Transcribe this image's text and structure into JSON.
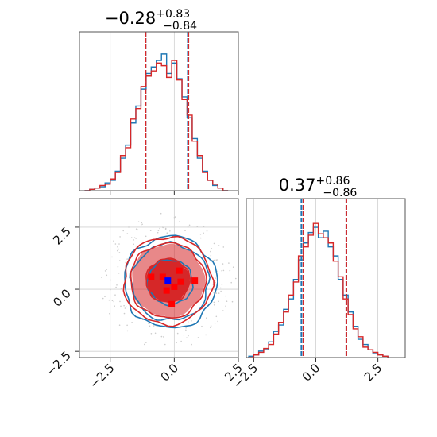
{
  "colors": {
    "blue": "#1f77b4",
    "red": "#d62728",
    "grid": "#d0d0d0",
    "marker": "#0000ff"
  },
  "chart_data": [
    {
      "type": "histogram",
      "panel": "top-left",
      "title": {
        "main": "−0.28",
        "sup": "+0.83",
        "sub": "−0.84"
      },
      "xlim": [
        -3.7,
        2.5
      ],
      "ylim": [
        0,
        1.22
      ],
      "grid": true,
      "xticks": [
        -2.5,
        0.0,
        2.5
      ],
      "quantile_lines": {
        "blue": [
          -1.12,
          0.53
        ],
        "red": [
          -1.12,
          0.55
        ]
      },
      "series": [
        {
          "name": "",
          "color": "blue",
          "bins": [
            -3.4,
            -3.2,
            -3.0,
            -2.8,
            -2.6,
            -2.4,
            -2.2,
            -2.0,
            -1.8,
            -1.6,
            -1.4,
            -1.2,
            -1.0,
            -0.8,
            -0.6,
            -0.4,
            -0.2,
            0.0,
            0.2,
            0.4,
            0.6,
            0.8,
            1.0,
            1.2,
            1.4,
            1.6,
            1.8,
            2.0,
            2.2
          ],
          "values": [
            0.0,
            0.01,
            0.02,
            0.03,
            0.06,
            0.08,
            0.15,
            0.25,
            0.35,
            0.52,
            0.65,
            0.78,
            0.9,
            0.95,
            1.0,
            1.05,
            0.9,
            0.98,
            0.86,
            0.72,
            0.56,
            0.4,
            0.25,
            0.15,
            0.08,
            0.04,
            0.02,
            0.0
          ]
        },
        {
          "name": "",
          "color": "red",
          "bins": [
            -3.4,
            -3.2,
            -3.0,
            -2.8,
            -2.6,
            -2.4,
            -2.2,
            -2.0,
            -1.8,
            -1.6,
            -1.4,
            -1.2,
            -1.0,
            -0.8,
            -0.6,
            -0.4,
            -0.2,
            0.0,
            0.2,
            0.4,
            0.6,
            0.8,
            1.0,
            1.2,
            1.4,
            1.6,
            1.8,
            2.0,
            2.2
          ],
          "values": [
            0.0,
            0.01,
            0.02,
            0.04,
            0.05,
            0.09,
            0.14,
            0.27,
            0.33,
            0.55,
            0.63,
            0.8,
            0.88,
            0.92,
            0.98,
            0.96,
            0.87,
            1.0,
            0.85,
            0.7,
            0.58,
            0.38,
            0.27,
            0.14,
            0.08,
            0.05,
            0.02,
            0.0
          ]
        }
      ]
    },
    {
      "type": "contour",
      "panel": "bottom-left",
      "xlim": [
        -3.7,
        2.5
      ],
      "ylim": [
        -2.75,
        3.65
      ],
      "grid": true,
      "xticks": [
        -2.5,
        0.0,
        2.5
      ],
      "yticks": [
        -2.5,
        0.0,
        2.5
      ],
      "center": [
        -0.25,
        0.35
      ],
      "contours": {
        "red_filled_sigma": [
          1.7,
          1.0
        ],
        "red_line_sigma": [
          2.05,
          1.75,
          1.02
        ],
        "blue_line_sigma": [
          2.15,
          1.8,
          1.05
        ],
        "sd": [
          0.84,
          0.86
        ]
      },
      "marker": {
        "x": -0.25,
        "y": 0.35,
        "color": "marker"
      },
      "red_squares": [
        [
          -0.9,
          0.5
        ],
        [
          -0.45,
          0.5
        ],
        [
          0.2,
          0.75
        ],
        [
          0.25,
          0.3
        ],
        [
          0.8,
          0.35
        ],
        [
          -0.3,
          -0.05
        ],
        [
          -0.1,
          -0.6
        ],
        [
          0.0,
          0.1
        ]
      ]
    },
    {
      "type": "histogram",
      "panel": "bottom-right",
      "title": {
        "main": "0.37",
        "sup": "+0.86",
        "sub": "−0.86"
      },
      "xlim": [
        -2.8,
        3.6
      ],
      "ylim": [
        0,
        1.22
      ],
      "grid": true,
      "xticks": [
        -2.5,
        0.0,
        2.5
      ],
      "quantile_lines": {
        "blue": [
          -0.58,
          1.23
        ],
        "red": [
          -0.5,
          1.23
        ]
      },
      "series": [
        {
          "name": "",
          "color": "blue",
          "bins": [
            -2.6,
            -2.4,
            -2.2,
            -2.0,
            -1.8,
            -1.6,
            -1.4,
            -1.2,
            -1.0,
            -0.8,
            -0.6,
            -0.4,
            -0.2,
            0.0,
            0.2,
            0.4,
            0.6,
            0.8,
            1.0,
            1.2,
            1.4,
            1.6,
            1.8,
            2.0,
            2.2,
            2.4,
            2.6,
            2.8,
            3.0
          ],
          "values": [
            0.01,
            0.02,
            0.05,
            0.06,
            0.12,
            0.2,
            0.25,
            0.37,
            0.45,
            0.6,
            0.75,
            0.88,
            0.96,
            1.0,
            0.92,
            0.97,
            0.85,
            0.78,
            0.6,
            0.48,
            0.35,
            0.24,
            0.14,
            0.1,
            0.06,
            0.03,
            0.02,
            0.01
          ]
        },
        {
          "name": "",
          "color": "red",
          "bins": [
            -2.6,
            -2.4,
            -2.2,
            -2.0,
            -1.8,
            -1.6,
            -1.4,
            -1.2,
            -1.0,
            -0.8,
            -0.6,
            -0.4,
            -0.2,
            0.0,
            0.2,
            0.4,
            0.6,
            0.8,
            1.0,
            1.2,
            1.4,
            1.6,
            1.8,
            2.0,
            2.2,
            2.4,
            2.6,
            2.8,
            3.0
          ],
          "values": [
            0.0,
            0.02,
            0.04,
            0.07,
            0.1,
            0.18,
            0.27,
            0.35,
            0.48,
            0.58,
            0.78,
            0.85,
            0.94,
            1.03,
            0.95,
            0.92,
            0.88,
            0.74,
            0.62,
            0.45,
            0.33,
            0.22,
            0.16,
            0.08,
            0.06,
            0.04,
            0.02,
            0.01
          ]
        }
      ]
    }
  ]
}
